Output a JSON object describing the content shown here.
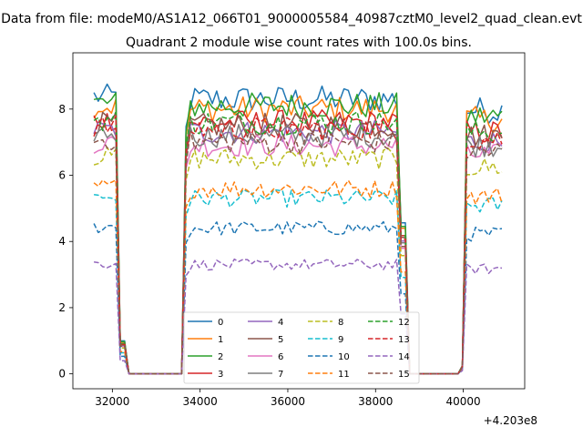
{
  "chart_data": {
    "type": "line",
    "suptitle": "Data from file: modeM0/AS1A12_066T01_9000005584_40987cztM0_level2_quad_clean.evt",
    "title": "Quadrant 2 module wise count rates with 100.0s bins.",
    "x_offset_label": "+4.203e8",
    "xlim": [
      31100,
      41400
    ],
    "ylim": [
      -0.45,
      9.7
    ],
    "x_ticks": [
      32000,
      34000,
      36000,
      38000,
      40000
    ],
    "x_tick_labels": [
      "32000",
      "34000",
      "36000",
      "38000",
      "40000"
    ],
    "y_ticks": [
      0,
      2,
      4,
      6,
      8
    ],
    "y_tick_labels": [
      "0",
      "2",
      "4",
      "6",
      "8"
    ],
    "grid": false,
    "legend_placement": "lower-center",
    "legend_columns": 4,
    "segments": [
      {
        "start": 31580,
        "end": 32150,
        "ramp_end": 32300
      },
      {
        "start": 33700,
        "end": 38550,
        "ramp_start": 33620,
        "ramp_end": 38740
      },
      {
        "start": 40040,
        "end": 40900,
        "ramp_start": 39950,
        "ramp_end": 40960
      }
    ],
    "series": [
      {
        "name": "0",
        "color": "#1f77b4",
        "dash": "solid",
        "level": 8.3
      },
      {
        "name": "1",
        "color": "#ff7f0e",
        "dash": "solid",
        "level": 8.0
      },
      {
        "name": "2",
        "color": "#2ca02c",
        "dash": "solid",
        "level": 8.1
      },
      {
        "name": "3",
        "color": "#d62728",
        "dash": "solid",
        "level": 7.6
      },
      {
        "name": "4",
        "color": "#9467bd",
        "dash": "solid",
        "level": 7.3
      },
      {
        "name": "5",
        "color": "#8c564b",
        "dash": "solid",
        "level": 7.5
      },
      {
        "name": "6",
        "color": "#e377c2",
        "dash": "solid",
        "level": 6.9
      },
      {
        "name": "7",
        "color": "#7f7f7f",
        "dash": "solid",
        "level": 7.2
      },
      {
        "name": "8",
        "color": "#bcbd22",
        "dash": "dashed",
        "level": 6.5
      },
      {
        "name": "9",
        "color": "#17becf",
        "dash": "dashed",
        "level": 5.3
      },
      {
        "name": "10",
        "color": "#1f77b4",
        "dash": "dashed",
        "level": 4.4
      },
      {
        "name": "11",
        "color": "#ff7f0e",
        "dash": "dashed",
        "level": 5.6
      },
      {
        "name": "12",
        "color": "#2ca02c",
        "dash": "dashed",
        "level": 7.6
      },
      {
        "name": "13",
        "color": "#d62728",
        "dash": "dashed",
        "level": 7.4
      },
      {
        "name": "14",
        "color": "#9467bd",
        "dash": "dashed",
        "level": 3.3
      },
      {
        "name": "15",
        "color": "#8c564b",
        "dash": "dashed",
        "level": 7.0
      }
    ]
  }
}
